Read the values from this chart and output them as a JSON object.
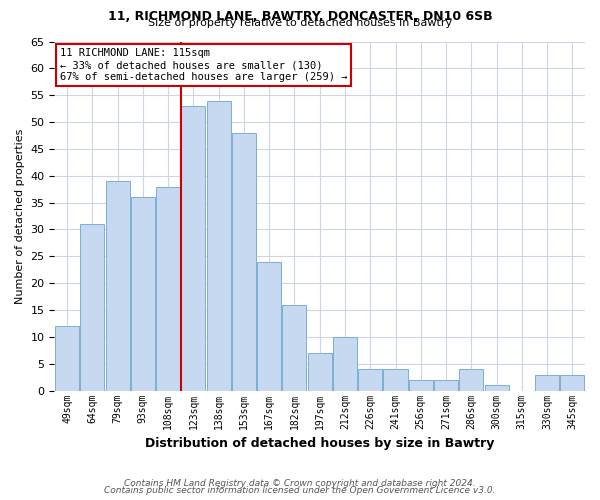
{
  "title1": "11, RICHMOND LANE, BAWTRY, DONCASTER, DN10 6SB",
  "title2": "Size of property relative to detached houses in Bawtry",
  "xlabel": "Distribution of detached houses by size in Bawtry",
  "ylabel": "Number of detached properties",
  "categories": [
    "49sqm",
    "64sqm",
    "79sqm",
    "93sqm",
    "108sqm",
    "123sqm",
    "138sqm",
    "153sqm",
    "167sqm",
    "182sqm",
    "197sqm",
    "212sqm",
    "226sqm",
    "241sqm",
    "256sqm",
    "271sqm",
    "286sqm",
    "300sqm",
    "315sqm",
    "330sqm",
    "345sqm"
  ],
  "values": [
    12,
    31,
    39,
    36,
    38,
    53,
    54,
    48,
    24,
    16,
    7,
    10,
    4,
    4,
    2,
    2,
    4,
    1,
    0,
    3,
    3
  ],
  "bar_color": "#c6d9f0",
  "bar_edge_color": "#7bafd4",
  "vline_x": 4.5,
  "annotation_text": "11 RICHMOND LANE: 115sqm\n← 33% of detached houses are smaller (130)\n67% of semi-detached houses are larger (259) →",
  "annotation_box_color": "#ffffff",
  "annotation_box_edge": "#cc0000",
  "vline_color": "#cc0000",
  "footnote1": "Contains HM Land Registry data © Crown copyright and database right 2024.",
  "footnote2": "Contains public sector information licensed under the Open Government Licence v3.0.",
  "ylim": [
    0,
    65
  ],
  "yticks": [
    0,
    5,
    10,
    15,
    20,
    25,
    30,
    35,
    40,
    45,
    50,
    55,
    60,
    65
  ],
  "background_color": "#ffffff",
  "grid_color": "#ccd6e8"
}
